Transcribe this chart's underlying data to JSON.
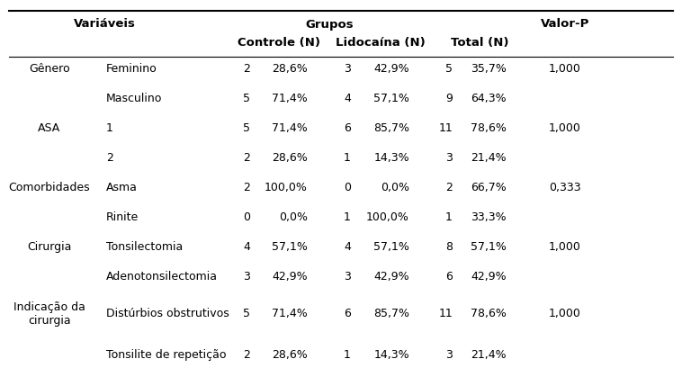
{
  "header1_vars": "Variáveis",
  "header1_grupos": "Grupos",
  "header1_valor": "Valor-P",
  "header2_controle": "Controle (N)",
  "header2_lidocaina": "Lidocaína (N)",
  "header2_total": "Total (N)",
  "rows": [
    [
      "Gênero",
      "Feminino",
      "2",
      "28,6%",
      "3",
      "42,9%",
      "5",
      "35,7%",
      "1,000"
    ],
    [
      "",
      "Masculino",
      "5",
      "71,4%",
      "4",
      "57,1%",
      "9",
      "64,3%",
      ""
    ],
    [
      "ASA",
      "1",
      "5",
      "71,4%",
      "6",
      "85,7%",
      "11",
      "78,6%",
      "1,000"
    ],
    [
      "",
      "2",
      "2",
      "28,6%",
      "1",
      "14,3%",
      "3",
      "21,4%",
      ""
    ],
    [
      "Comorbidades",
      "Asma",
      "2",
      "100,0%",
      "0",
      "0,0%",
      "2",
      "66,7%",
      "0,333"
    ],
    [
      "",
      "Rinite",
      "0",
      "0,0%",
      "1",
      "100,0%",
      "1",
      "33,3%",
      ""
    ],
    [
      "Cirurgia",
      "Tonsilectomia",
      "4",
      "57,1%",
      "4",
      "57,1%",
      "8",
      "57,1%",
      "1,000"
    ],
    [
      "",
      "Adenotonsilectomia",
      "3",
      "42,9%",
      "3",
      "42,9%",
      "6",
      "42,9%",
      ""
    ],
    [
      "Indicação da\ncirurgia",
      "Distúrbios obstrutivos",
      "5",
      "71,4%",
      "6",
      "85,7%",
      "11",
      "78,6%",
      "1,000"
    ],
    [
      "",
      "Tonsilite de repetição",
      "2",
      "28,6%",
      "1",
      "14,3%",
      "3",
      "21,4%",
      ""
    ]
  ],
  "bg_color": "#ffffff",
  "header_fontsize": 9.5,
  "body_fontsize": 9,
  "font_family": "DejaVu Sans"
}
